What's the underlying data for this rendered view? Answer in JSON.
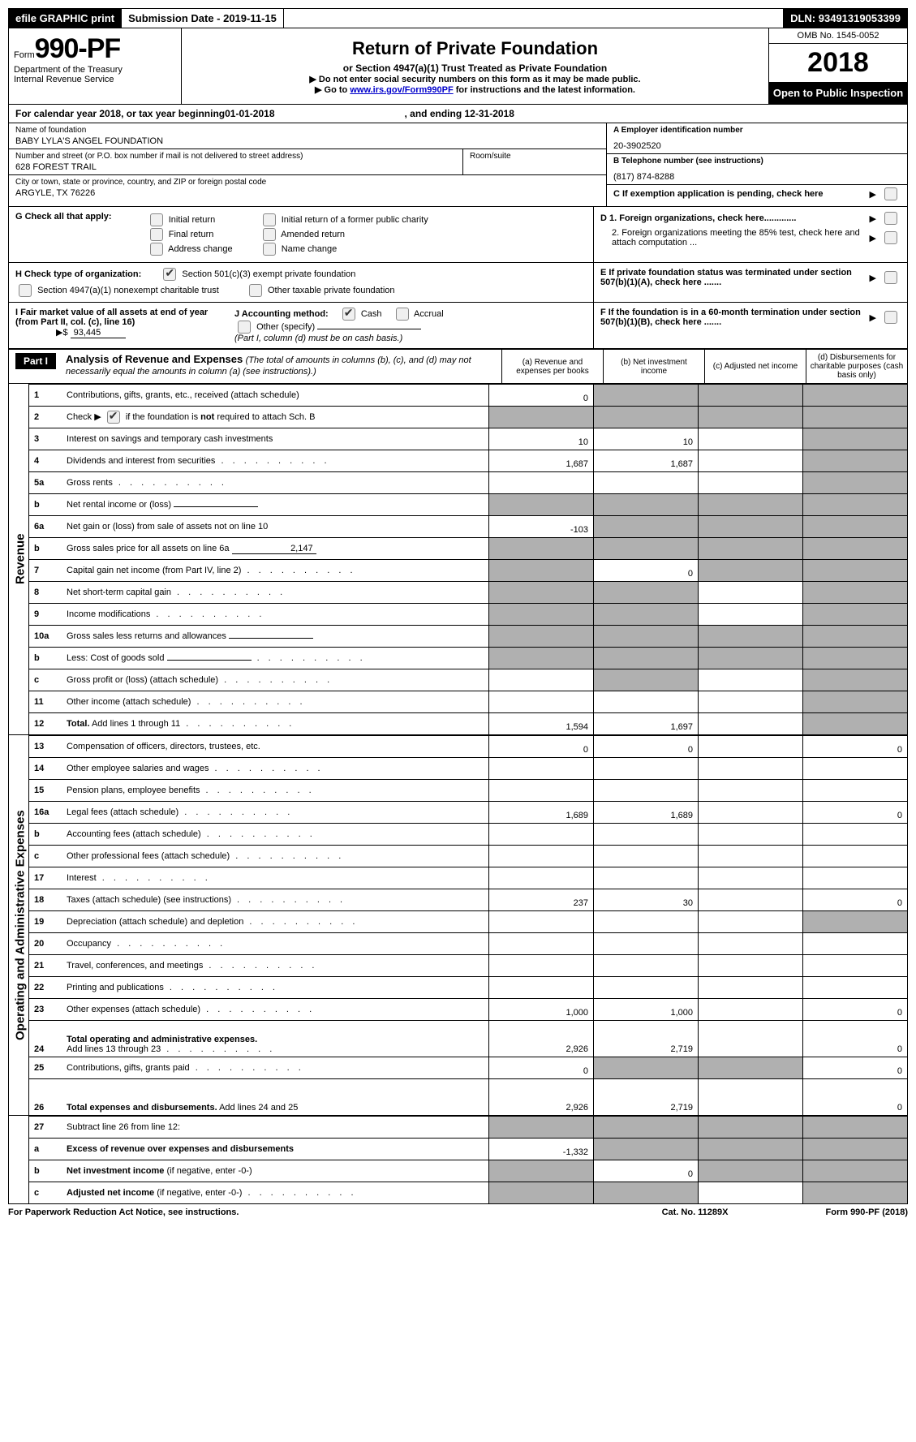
{
  "top_bar": {
    "efile": "efile GRAPHIC print",
    "sub_date_lbl": "Submission Date - 2019-11-15",
    "dln_lbl": "DLN:",
    "dln": "93491319053399"
  },
  "header": {
    "form_word": "Form",
    "form_no": "990-PF",
    "dept1": "Department of the Treasury",
    "dept2": "Internal Revenue Service",
    "title": "Return of Private Foundation",
    "subtitle": "or Section 4947(a)(1) Trust Treated as Private Foundation",
    "note1": "Do not enter social security numbers on this form as it may be made public.",
    "note2_pre": "Go to ",
    "note2_link": "www.irs.gov/Form990PF",
    "note2_post": " for instructions and the latest information.",
    "omb": "OMB No. 1545-0052",
    "year": "2018",
    "open": "Open to Public Inspection"
  },
  "cal": {
    "pre": "For calendar year 2018, or tax year beginning ",
    "begin": "01-01-2018",
    "mid": ", and ending ",
    "end": "12-31-2018"
  },
  "info": {
    "name_lbl": "Name of foundation",
    "name": "BABY LYLA'S ANGEL FOUNDATION",
    "addr_lbl": "Number and street (or P.O. box number if mail is not delivered to street address)",
    "addr": "628 FOREST TRAIL",
    "room_lbl": "Room/suite",
    "room": "",
    "city_lbl": "City or town, state or province, country, and ZIP or foreign postal code",
    "city": "ARGYLE, TX  76226",
    "A_lbl": "A Employer identification number",
    "A": "20-3902520",
    "B_lbl": "B Telephone number (see instructions)",
    "B": "(817) 874-8288",
    "C_lbl": "C  If exemption application is pending, check here"
  },
  "G": {
    "label": "G Check all that apply:",
    "initial": "Initial return",
    "initial_former": "Initial return of a former public charity",
    "final": "Final return",
    "amended": "Amended return",
    "addr_change": "Address change",
    "name_change": "Name change"
  },
  "H": {
    "label": "H Check type of organization:",
    "opt1": "Section 501(c)(3) exempt private foundation",
    "opt2": "Section 4947(a)(1) nonexempt charitable trust",
    "opt3": "Other taxable private foundation"
  },
  "I": {
    "label": "I Fair market value of all assets at end of year (from Part II, col. (c), line 16)",
    "arrow": "▶$",
    "value": "93,445"
  },
  "J": {
    "label": "J Accounting method:",
    "cash": "Cash",
    "accrual": "Accrual",
    "other": "Other (specify)",
    "note": "(Part I, column (d) must be on cash basis.)"
  },
  "D": {
    "d1": "D 1. Foreign organizations, check here.............",
    "d2": "2. Foreign organizations meeting the 85% test, check here and attach computation ...",
    "E": "E   If private foundation status was terminated under section 507(b)(1)(A), check here .......",
    "F": "F   If the foundation is in a 60-month termination under section 507(b)(1)(B), check here ......."
  },
  "part1": {
    "tag": "Part I",
    "title": "Analysis of Revenue and Expenses",
    "desc": "(The total of amounts in columns (b), (c), and (d) may not necessarily equal the amounts in column (a) (see instructions).)",
    "col_a": "(a)     Revenue and expenses per books",
    "col_b": "(b)     Net investment income",
    "col_c": "(c)     Adjusted net income",
    "col_d": "(d)     Disbursements for charitable purposes (cash basis only)"
  },
  "side": {
    "rev": "Revenue",
    "exp": "Operating and Administrative Expenses"
  },
  "rows": {
    "r1": {
      "no": "1",
      "d": "",
      "a": "0",
      "b": "",
      "c": "",
      "sa": false,
      "sb": true,
      "sc": true,
      "sd": true
    },
    "r2": {
      "no": "2",
      "d": "",
      "d2": " if the foundation is <b>not</b> required to attach Sch. B",
      "a": "",
      "b": "",
      "c": "",
      "sa": true,
      "sb": true,
      "sc": true,
      "sd": true,
      "cb": true
    },
    "r3": {
      "no": "3",
      "d": "",
      "a": "10",
      "b": "10",
      "c": "",
      "sa": false,
      "sb": false,
      "sc": false,
      "sd": true
    },
    "r4": {
      "no": "4",
      "d": "",
      "a": "1,687",
      "b": "1,687",
      "c": "",
      "sa": false,
      "sb": false,
      "sc": false,
      "sd": true,
      "dots": true
    },
    "r5a": {
      "no": "5a",
      "d": "",
      "a": "",
      "b": "",
      "c": "",
      "sa": false,
      "sb": false,
      "sc": false,
      "sd": true,
      "dots": true
    },
    "r5b": {
      "no": "b",
      "d": "",
      "a": "",
      "b": "",
      "c": "",
      "sa": true,
      "sb": true,
      "sc": true,
      "sd": true,
      "ul": true
    },
    "r6a": {
      "no": "6a",
      "d": "",
      "a": "-103",
      "b": "",
      "c": "",
      "sa": false,
      "sb": true,
      "sc": true,
      "sd": true
    },
    "r6b": {
      "no": "b",
      "d": "",
      "a": "",
      "b": "",
      "c": "",
      "sa": true,
      "sb": true,
      "sc": true,
      "sd": true,
      "ul_val": "2,147"
    },
    "r7": {
      "no": "7",
      "d": "",
      "a": "",
      "b": "0",
      "c": "",
      "sa": true,
      "sb": false,
      "sc": true,
      "sd": true,
      "dots": true
    },
    "r8": {
      "no": "8",
      "d": "",
      "a": "",
      "b": "",
      "c": "",
      "sa": true,
      "sb": true,
      "sc": false,
      "sd": true,
      "dots": true
    },
    "r9": {
      "no": "9",
      "d": "",
      "a": "",
      "b": "",
      "c": "",
      "sa": true,
      "sb": true,
      "sc": false,
      "sd": true,
      "dots": true
    },
    "r10a": {
      "no": "10a",
      "d": "",
      "a": "",
      "b": "",
      "c": "",
      "sa": true,
      "sb": true,
      "sc": true,
      "sd": true,
      "ul": true
    },
    "r10b": {
      "no": "b",
      "d": "",
      "a": "",
      "b": "",
      "c": "",
      "sa": true,
      "sb": true,
      "sc": true,
      "sd": true,
      "dots": true,
      "ul": true
    },
    "r10c": {
      "no": "c",
      "d": "",
      "a": "",
      "b": "",
      "c": "",
      "sa": false,
      "sb": true,
      "sc": false,
      "sd": true,
      "dots": true
    },
    "r11": {
      "no": "11",
      "d": "",
      "a": "",
      "b": "",
      "c": "",
      "sa": false,
      "sb": false,
      "sc": false,
      "sd": true,
      "dots": true
    },
    "r12": {
      "no": "12",
      "d": "",
      "a": "1,594",
      "b": "1,697",
      "c": "",
      "sa": false,
      "sb": false,
      "sc": false,
      "sd": true,
      "dots": true
    },
    "r13": {
      "no": "13",
      "d": "0",
      "a": "0",
      "b": "0",
      "c": "",
      "sa": false,
      "sb": false,
      "sc": false,
      "sd": false
    },
    "r14": {
      "no": "14",
      "d": "",
      "a": "",
      "b": "",
      "c": "",
      "sa": false,
      "sb": false,
      "sc": false,
      "sd": false,
      "dots": true
    },
    "r15": {
      "no": "15",
      "d": "",
      "a": "",
      "b": "",
      "c": "",
      "sa": false,
      "sb": false,
      "sc": false,
      "sd": false,
      "dots": true
    },
    "r16a": {
      "no": "16a",
      "d": "0",
      "a": "1,689",
      "b": "1,689",
      "c": "",
      "sa": false,
      "sb": false,
      "sc": false,
      "sd": false,
      "dots": true
    },
    "r16b": {
      "no": "b",
      "d": "",
      "a": "",
      "b": "",
      "c": "",
      "sa": false,
      "sb": false,
      "sc": false,
      "sd": false,
      "dots": true
    },
    "r16c": {
      "no": "c",
      "d": "",
      "a": "",
      "b": "",
      "c": "",
      "sa": false,
      "sb": false,
      "sc": false,
      "sd": false,
      "dots": true
    },
    "r17": {
      "no": "17",
      "d": "",
      "a": "",
      "b": "",
      "c": "",
      "sa": false,
      "sb": false,
      "sc": false,
      "sd": false,
      "dots": true
    },
    "r18": {
      "no": "18",
      "d": "0",
      "a": "237",
      "b": "30",
      "c": "",
      "sa": false,
      "sb": false,
      "sc": false,
      "sd": false,
      "dots": true
    },
    "r19": {
      "no": "19",
      "d": "",
      "a": "",
      "b": "",
      "c": "",
      "sa": false,
      "sb": false,
      "sc": false,
      "sd": true,
      "dots": true
    },
    "r20": {
      "no": "20",
      "d": "",
      "a": "",
      "b": "",
      "c": "",
      "sa": false,
      "sb": false,
      "sc": false,
      "sd": false,
      "dots": true
    },
    "r21": {
      "no": "21",
      "d": "",
      "a": "",
      "b": "",
      "c": "",
      "sa": false,
      "sb": false,
      "sc": false,
      "sd": false,
      "dots": true
    },
    "r22": {
      "no": "22",
      "d": "",
      "a": "",
      "b": "",
      "c": "",
      "sa": false,
      "sb": false,
      "sc": false,
      "sd": false,
      "dots": true
    },
    "r23": {
      "no": "23",
      "d": "0",
      "a": "1,000",
      "b": "1,000",
      "c": "",
      "sa": false,
      "sb": false,
      "sc": false,
      "sd": false,
      "dots": true
    },
    "r24": {
      "no": "24",
      "d": "0",
      "a": "2,926",
      "b": "2,719",
      "c": "",
      "sa": false,
      "sb": false,
      "sc": false,
      "sd": false,
      "dots": true,
      "tall": true
    },
    "r25": {
      "no": "25",
      "d": "0",
      "a": "0",
      "b": "",
      "c": "",
      "sa": false,
      "sb": true,
      "sc": true,
      "sd": false,
      "dots": true
    },
    "r26": {
      "no": "26",
      "d": "0",
      "a": "2,926",
      "b": "2,719",
      "c": "",
      "sa": false,
      "sb": false,
      "sc": false,
      "sd": false,
      "tall": true
    },
    "r27": {
      "no": "27",
      "d": "",
      "a": "",
      "b": "",
      "c": "",
      "sa": true,
      "sb": true,
      "sc": true,
      "sd": true
    },
    "r27a": {
      "no": "a",
      "d": "",
      "a": "-1,332",
      "b": "",
      "c": "",
      "sa": false,
      "sb": true,
      "sc": true,
      "sd": true
    },
    "r27b": {
      "no": "b",
      "d": "",
      "a": "",
      "b": "0",
      "c": "",
      "sa": true,
      "sb": false,
      "sc": true,
      "sd": true
    },
    "r27c": {
      "no": "c",
      "d": "",
      "a": "",
      "b": "",
      "c": "",
      "sa": true,
      "sb": true,
      "sc": false,
      "sd": true,
      "dots": true
    }
  },
  "footer": {
    "left": "For Paperwork Reduction Act Notice, see instructions.",
    "mid": "Cat. No. 11289X",
    "right": "Form 990-PF (2018)"
  }
}
